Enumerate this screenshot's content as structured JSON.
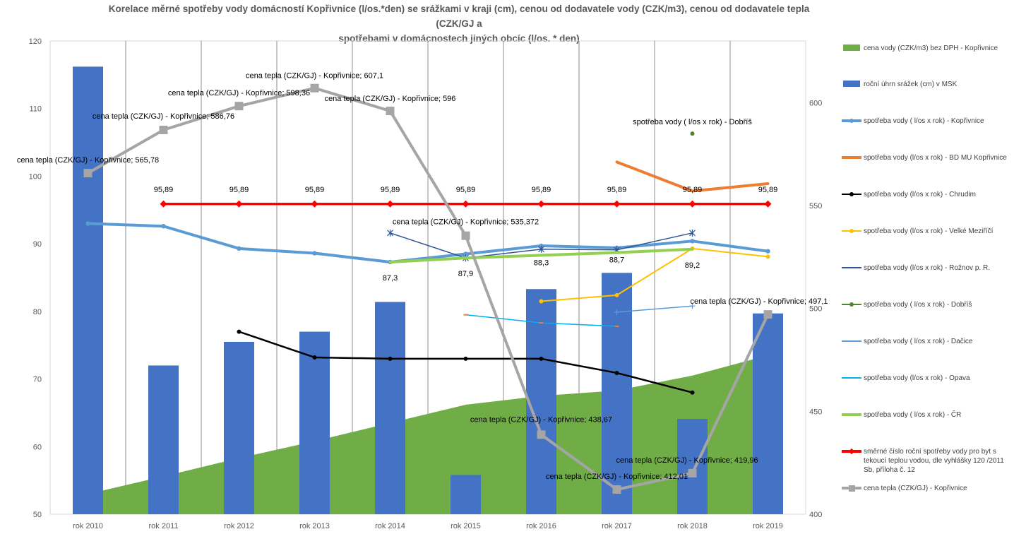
{
  "chart_data": {
    "type": "combo",
    "title": [
      "Korelace měrné spotřeby vody domácností Kopřivnice (l/os.*den) se srážkami v kraji (cm), cenou od dodavatele vody (CZK/m3), cenou od dodavatele tepla (CZK/GJ a",
      "spotřebami v domácnostech jiných obcíc (l/os. * den)"
    ],
    "categories": [
      "rok 2010",
      "rok 2011",
      "rok 2012",
      "rok 2013",
      "rok 2014",
      "rok 2015",
      "rok 2016",
      "rok 2017",
      "rok 2018",
      "rok 2019"
    ],
    "y_left": {
      "min": 50,
      "max": 120,
      "ticks": [
        "50",
        "60",
        "70",
        "80",
        "90",
        "100",
        "110",
        "120"
      ]
    },
    "y_right": {
      "min": 400,
      "max": 630,
      "ticks": [
        "400",
        "450",
        "500",
        "550",
        "600"
      ]
    },
    "grid": "vertical",
    "legend_position": "right",
    "series": [
      {
        "name": "cena  vody (CZK/m3) bez DPH - Kopřivnice",
        "type": "area",
        "axis": "left",
        "color": "#70AD47",
        "values": [
          53,
          55.6,
          58.3,
          60.8,
          63.5,
          66.2,
          67.5,
          68.3,
          70.5,
          73.5
        ]
      },
      {
        "name": "roční úhrn srážek (cm) v MSK",
        "type": "bar",
        "axis": "left",
        "color": "#4472C4",
        "values": [
          116.2,
          72,
          75.5,
          77,
          81.4,
          55.8,
          83.3,
          85.7,
          64.1,
          79.7
        ]
      },
      {
        "name": "spotřeba vody  ( l/os x rok) -  Kopřivnice",
        "type": "line",
        "axis": "left",
        "color": "#5B9BD5",
        "width": 4,
        "marker": "circle",
        "values": [
          93,
          92.6,
          89.3,
          88.6,
          87.3,
          88.5,
          89.7,
          89.4,
          90.4,
          88.9
        ]
      },
      {
        "name": "spotřeba vody  (l/os x rok) - BD MU Kopřivnice",
        "type": "line",
        "axis": "left",
        "color": "#ED7D31",
        "width": 4,
        "marker": "none",
        "values": [
          null,
          null,
          null,
          null,
          null,
          null,
          null,
          102.1,
          97.8,
          98.9
        ]
      },
      {
        "name": "spotřeba vody  (l/os x rok) -  Chrudim",
        "type": "line",
        "axis": "left",
        "color": "#000000",
        "width": 2.5,
        "marker": "circle",
        "values": [
          null,
          null,
          77,
          73.2,
          73,
          73,
          73,
          70.9,
          68,
          null
        ]
      },
      {
        "name": "spotřeba vody (l/os x rok) -  Velké Meziříčí",
        "type": "line",
        "axis": "left",
        "color": "#FFC000",
        "width": 2,
        "marker": "circle",
        "values": [
          null,
          null,
          null,
          null,
          null,
          null,
          81.5,
          82.4,
          89.3,
          88.1
        ]
      },
      {
        "name": "spotřeba vody (l/os x rok) - Rožnov p. R.",
        "type": "line",
        "axis": "left",
        "color": "#2F5597",
        "width": 1.5,
        "marker": "star",
        "values": [
          null,
          null,
          null,
          null,
          91.6,
          87.9,
          89.2,
          89.1,
          91.6,
          null
        ]
      },
      {
        "name": "spotřeba vody  ( l/os x rok) - Dobříš",
        "type": "line",
        "axis": "left",
        "color": "#548235",
        "width": 2,
        "marker": "circle",
        "values": [
          null,
          null,
          null,
          null,
          null,
          null,
          null,
          null,
          106.3,
          null
        ]
      },
      {
        "name": "spotřeba vody  ( l/os x rok) - Dačice",
        "type": "line",
        "axis": "left",
        "color": "#5B9BD5",
        "width": 1.5,
        "marker": "plus",
        "values": [
          null,
          null,
          null,
          null,
          null,
          null,
          null,
          79.9,
          80.8,
          null
        ]
      },
      {
        "name": "spotřeba vody  (l/os x rok) - Opava",
        "type": "line",
        "axis": "left",
        "color": "#00B0F0",
        "width": 1.5,
        "marker": "dash",
        "values": [
          null,
          null,
          null,
          null,
          null,
          79.5,
          78.3,
          77.8,
          null,
          null
        ]
      },
      {
        "name": "spotřeba vody  ( l/os x rok) -  ČR",
        "type": "line",
        "axis": "left",
        "color": "#92D050",
        "width": 4,
        "marker": "none",
        "values": [
          null,
          null,
          null,
          null,
          87.3,
          87.9,
          88.3,
          88.7,
          89.2,
          null
        ]
      },
      {
        "name": "směrné číslo roční spotřeby vody pro byt s tekoucí teplou vodou, dle vyhlášky 120 /2011 Sb, příloha č. 12",
        "type": "line",
        "axis": "left",
        "color": "#FF0000",
        "width": 3.5,
        "marker": "diamond",
        "values": [
          null,
          95.89,
          95.89,
          95.89,
          95.89,
          95.89,
          95.89,
          95.89,
          95.89,
          95.89
        ]
      },
      {
        "name": "cena tepla (CZK/GJ) - Kopřivnice",
        "type": "line",
        "axis": "right",
        "color": "#A5A5A5",
        "width": 4,
        "marker": "square",
        "values": [
          565.78,
          586.76,
          598.36,
          607.1,
          596,
          535.372,
          438.67,
          412.01,
          419.96,
          497.1
        ]
      }
    ],
    "data_labels": {
      "red_line": [
        "95,89",
        "95,89",
        "95,89",
        "95,89",
        "95,89",
        "95,89",
        "95,89",
        "95,89",
        "95,89"
      ],
      "cr_line": [
        "87,3",
        "87,9",
        "88,3",
        "88,7",
        "89,2"
      ],
      "heat_price": [
        "cena tepla (CZK/GJ) - Kopřivnice; 565,78",
        "cena tepla (CZK/GJ) - Kopřivnice; 586,76",
        "cena tepla (CZK/GJ) - Kopřivnice; 598,36",
        "cena tepla (CZK/GJ) - Kopřivnice; 607,1",
        "cena tepla (CZK/GJ) - Kopřivnice; 596",
        "cena tepla (CZK/GJ) - Kopřivnice; 535,372",
        "cena tepla (CZK/GJ) - Kopřivnice; 438,67",
        "cena tepla (CZK/GJ) - Kopřivnice; 412,01",
        "cena tepla (CZK/GJ) - Kopřivnice; 419,96",
        "cena tepla (CZK/GJ) - Kopřivnice; 497,1"
      ],
      "dobris": "spotřeba vody  ( l/os x rok) - Dobříš"
    }
  }
}
